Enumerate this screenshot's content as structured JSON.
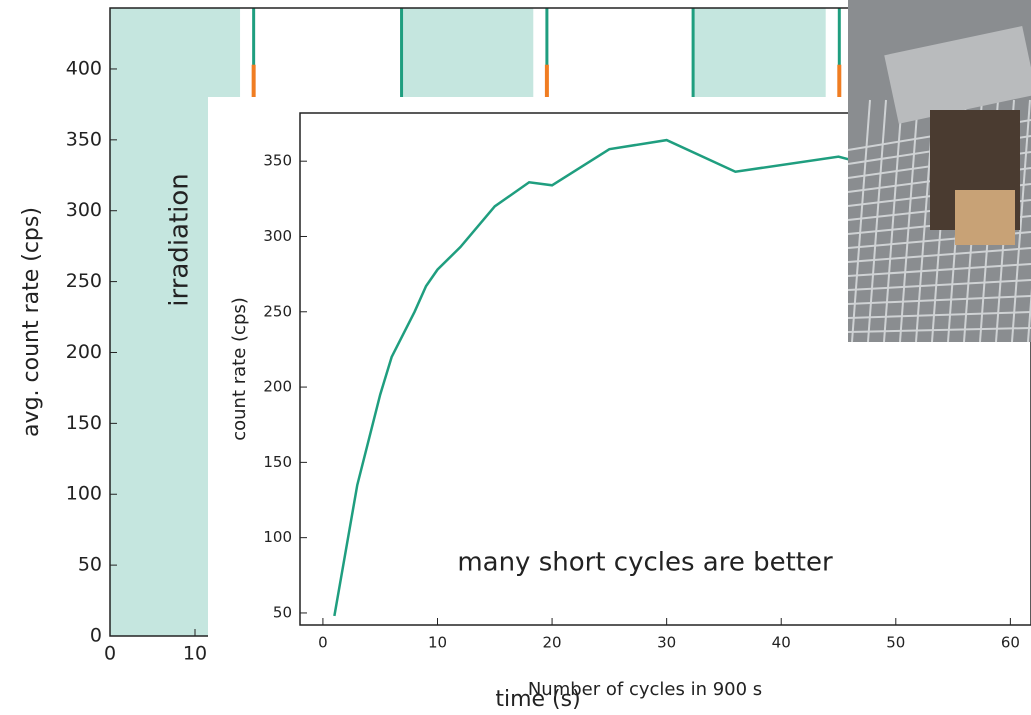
{
  "chart_data": [
    {
      "type": "span",
      "ylabel": "avg. count rate (cps)",
      "xlabel": "time (s)",
      "annotation": "irradiation",
      "xlim": [
        0,
        108
      ],
      "ylim": [
        0,
        443
      ],
      "xticks": [
        0,
        10
      ],
      "yticks": [
        0,
        50,
        100,
        150,
        200,
        250,
        300,
        350,
        400
      ],
      "spans": [
        [
          0,
          15.3
        ],
        [
          34.4,
          49.8
        ],
        [
          68.7,
          84.2
        ]
      ],
      "span_color": "#c5e6df",
      "x": [
        16.9,
        34.3,
        51.4,
        68.6,
        85.8
      ],
      "line_color": "#1f9e7f",
      "tail_color": "#f07d22",
      "tail": [
        16.9,
        51.4,
        85.8
      ]
    },
    {
      "type": "line",
      "ylabel": "count rate (cps)",
      "xlabel": "Number of cycles in 900 s",
      "annotation": "many short cycles are better",
      "xlim": [
        -2,
        61.8
      ],
      "ylim": [
        42,
        382
      ],
      "xticks": [
        0,
        10,
        20,
        30,
        40,
        50,
        60
      ],
      "yticks": [
        50,
        100,
        150,
        200,
        250,
        300,
        350
      ],
      "series": [
        {
          "name": "count rate",
          "color": "#1f9e7f",
          "x": [
            1,
            3,
            4,
            5,
            6,
            8,
            9,
            10,
            12,
            15,
            18,
            20,
            25,
            30,
            36,
            45,
            47
          ],
          "values": [
            48,
            135,
            165,
            195,
            220,
            250,
            267,
            278,
            293,
            320,
            336,
            334,
            358,
            364,
            343,
            353,
            349
          ]
        }
      ]
    }
  ]
}
